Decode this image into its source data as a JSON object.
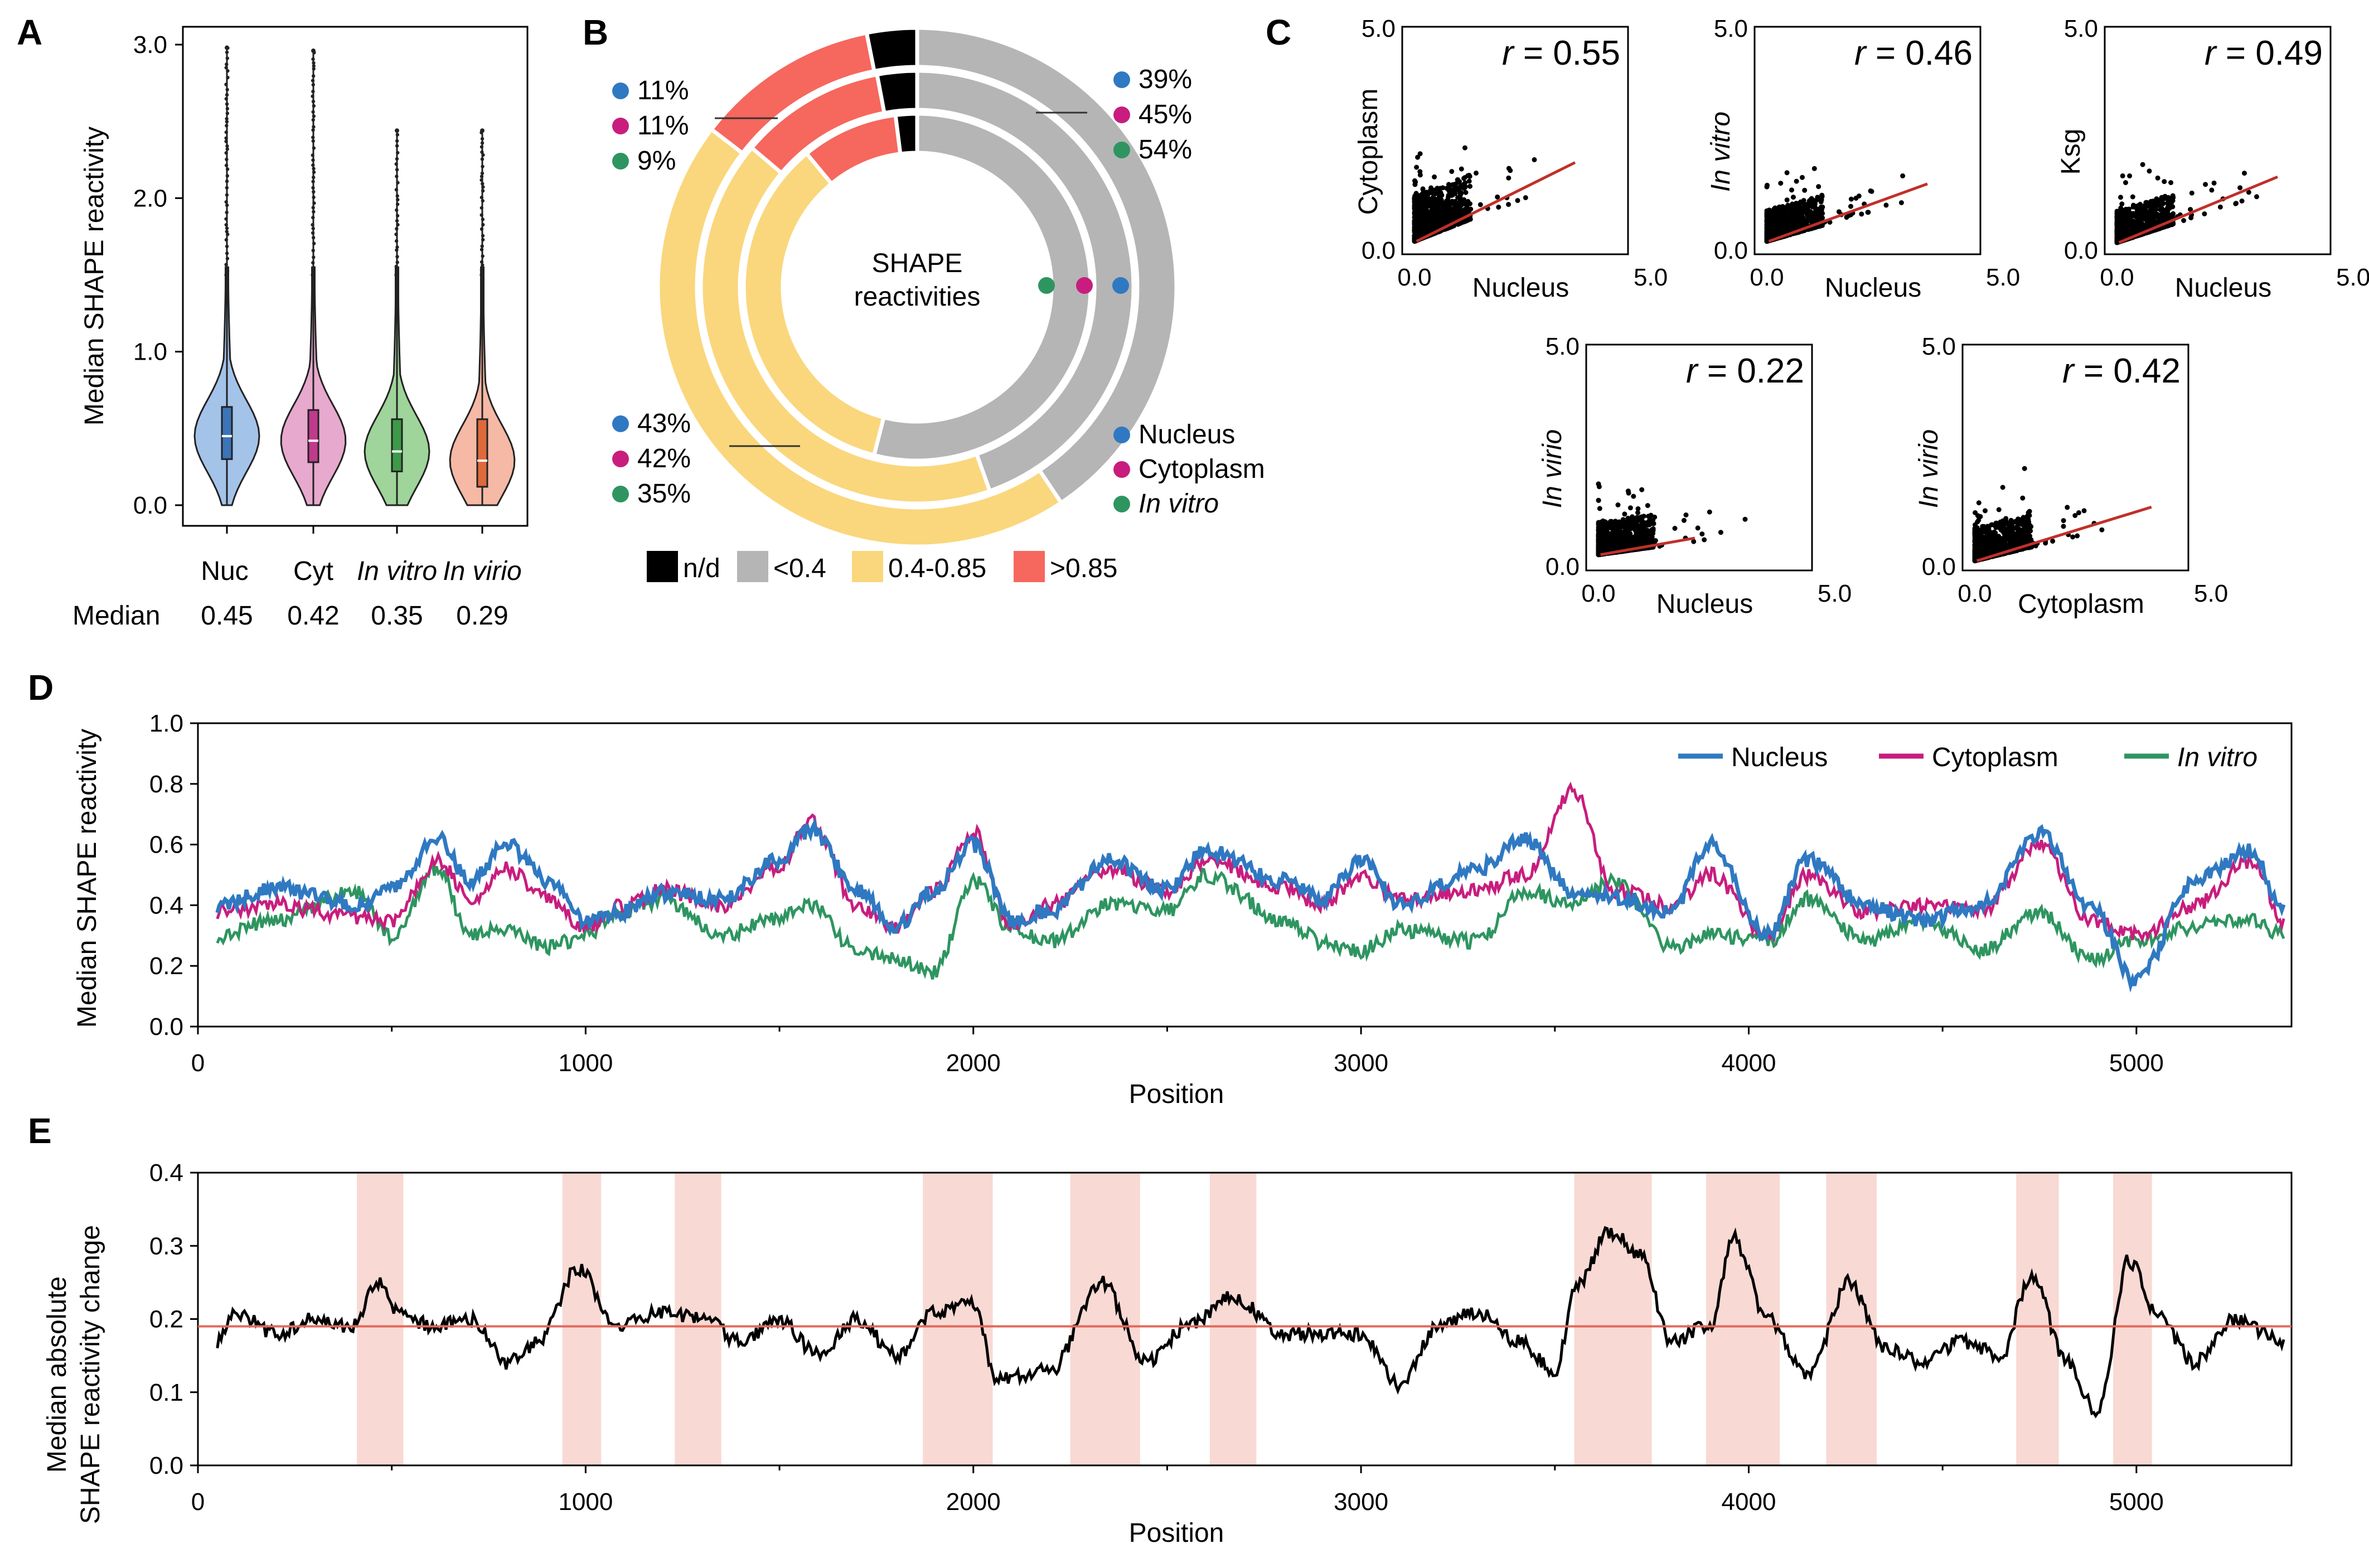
{
  "chart_data": [
    {
      "panel": "A",
      "type": "violin",
      "ylabel": "Median SHAPE reactivity",
      "ylim": [
        0,
        3.0
      ],
      "yticks": [
        "0.0",
        "1.0",
        "2.0",
        "3.0"
      ],
      "categories": [
        "Nuc",
        "Cyt",
        "In vitro",
        "In virio"
      ],
      "median_label": "Median",
      "median_values": [
        "0.45",
        "0.42",
        "0.35",
        "0.29"
      ],
      "medians": [
        0.45,
        0.42,
        0.35,
        0.29
      ],
      "q1": [
        0.3,
        0.28,
        0.22,
        0.12
      ],
      "q3": [
        0.64,
        0.62,
        0.56,
        0.56
      ],
      "whisker_high": [
        2.98,
        2.96,
        2.44,
        2.44
      ],
      "colors": [
        "#a4c3e9",
        "#e7a9cd",
        "#9fd49a",
        "#f5b9a6"
      ],
      "edge_colors": [
        "#3c74b8",
        "#c03a8e",
        "#3c9a48",
        "#de6a3c"
      ]
    },
    {
      "panel": "B",
      "type": "donut",
      "center_label": [
        "SHAPE",
        "reactivities"
      ],
      "categories": [
        "n/d",
        "<0.4",
        "0.4-0.85",
        ">0.85"
      ],
      "category_colors": [
        "#000000",
        "#b5b5b5",
        "#fad77d",
        "#f6675e"
      ],
      "rings": [
        {
          "name": "Nucleus",
          "color": "#2f79c2",
          "values": [
            3,
            39,
            43,
            11
          ]
        },
        {
          "name": "Cytoplasm",
          "color": "#c81d7e",
          "values": [
            3,
            45,
            42,
            11
          ]
        },
        {
          "name": "In vitro",
          "color": "#2e9560",
          "values": [
            2,
            54,
            35,
            9
          ]
        }
      ],
      "annotations": {
        "gt085": [
          "11%",
          "11%",
          "9%"
        ],
        "lt04": [
          "39%",
          "45%",
          "54%"
        ],
        "mid": [
          "43%",
          "42%",
          "35%"
        ]
      },
      "legend_rings": [
        "Nucleus",
        "Cytoplasm",
        "In vitro"
      ]
    },
    {
      "panel": "C",
      "type": "scatter",
      "plots": [
        {
          "xlabel": "Nucleus",
          "ylabel": "Cytoplasm",
          "r_prefix": "r",
          "r_value": "= 0.55",
          "xlim": [
            0,
            5.0
          ],
          "ylim": [
            0,
            5.0
          ],
          "slope": 0.48,
          "intercept": 0.18,
          "fit_xmax": 4.0,
          "spread": 1.1
        },
        {
          "xlabel": "Nucleus",
          "ylabel": "In vitro",
          "r_prefix": "r",
          "r_value": "= 0.46",
          "xlim": [
            0,
            5.0
          ],
          "ylim": [
            0,
            5.0
          ],
          "slope": 0.35,
          "intercept": 0.18,
          "fit_xmax": 4.0,
          "spread": 0.75
        },
        {
          "xlabel": "Nucleus",
          "ylabel": "Ksg",
          "r_prefix": "r",
          "r_value": "= 0.49",
          "xlim": [
            0,
            5.0
          ],
          "ylim": [
            0,
            5.0
          ],
          "slope": 0.4,
          "intercept": 0.15,
          "fit_xmax": 4.0,
          "spread": 0.75
        },
        {
          "xlabel": "Nucleus",
          "ylabel": "In virio",
          "r_prefix": "r",
          "r_value": "= 0.22",
          "xlim": [
            0,
            5.0
          ],
          "ylim": [
            0,
            5.0
          ],
          "slope": 0.17,
          "intercept": 0.25,
          "fit_xmax": 2.4,
          "spread": 0.8
        },
        {
          "xlabel": "Cytoplasm",
          "ylabel": "In virio",
          "r_prefix": "r",
          "r_value": "= 0.42",
          "xlim": [
            0,
            5.0
          ],
          "ylim": [
            0,
            5.0
          ],
          "slope": 0.3,
          "intercept": 0.1,
          "fit_xmax": 4.4,
          "spread": 0.8
        }
      ],
      "ticks": [
        "0.0",
        "5.0"
      ]
    },
    {
      "panel": "D",
      "type": "line",
      "xlabel": "Position",
      "ylabel": "Median SHAPE reactivity",
      "xlim": [
        0,
        5400
      ],
      "ylim": [
        0,
        1.0
      ],
      "xticks": [
        0,
        1000,
        2000,
        3000,
        4000,
        5000
      ],
      "yticks": [
        "0.0",
        "0.2",
        "0.4",
        "0.6",
        "0.8",
        "1.0"
      ],
      "x": [
        50,
        200,
        400,
        500,
        620,
        700,
        800,
        900,
        1000,
        1100,
        1200,
        1350,
        1500,
        1580,
        1700,
        1800,
        1900,
        2000,
        2100,
        2200,
        2350,
        2500,
        2600,
        2800,
        2900,
        3000,
        3100,
        3300,
        3420,
        3550,
        3650,
        3800,
        3900,
        4050,
        4150,
        4300,
        4450,
        4600,
        4750,
        4880,
        5000,
        5150,
        5300,
        5380
      ],
      "series": [
        {
          "name": "Nucleus",
          "color": "#2f79c2",
          "values": [
            0.4,
            0.46,
            0.4,
            0.45,
            0.62,
            0.48,
            0.6,
            0.48,
            0.35,
            0.38,
            0.44,
            0.42,
            0.55,
            0.65,
            0.45,
            0.33,
            0.45,
            0.6,
            0.35,
            0.38,
            0.55,
            0.45,
            0.58,
            0.48,
            0.42,
            0.55,
            0.4,
            0.52,
            0.62,
            0.44,
            0.43,
            0.38,
            0.6,
            0.3,
            0.55,
            0.4,
            0.35,
            0.4,
            0.64,
            0.4,
            0.15,
            0.48,
            0.58,
            0.38
          ]
        },
        {
          "name": "Cytoplasm",
          "color": "#c81d7e",
          "values": [
            0.38,
            0.4,
            0.36,
            0.35,
            0.55,
            0.42,
            0.52,
            0.42,
            0.33,
            0.4,
            0.45,
            0.4,
            0.52,
            0.68,
            0.4,
            0.33,
            0.45,
            0.64,
            0.33,
            0.4,
            0.52,
            0.45,
            0.55,
            0.46,
            0.4,
            0.5,
            0.42,
            0.45,
            0.5,
            0.78,
            0.45,
            0.4,
            0.5,
            0.3,
            0.5,
            0.38,
            0.4,
            0.38,
            0.6,
            0.35,
            0.3,
            0.4,
            0.55,
            0.35
          ]
        },
        {
          "name": "In vitro",
          "color": "#2e9560",
          "values": [
            0.3,
            0.35,
            0.45,
            0.3,
            0.52,
            0.3,
            0.32,
            0.26,
            0.3,
            0.38,
            0.42,
            0.3,
            0.36,
            0.4,
            0.25,
            0.22,
            0.18,
            0.48,
            0.32,
            0.28,
            0.4,
            0.38,
            0.5,
            0.35,
            0.28,
            0.25,
            0.32,
            0.28,
            0.45,
            0.4,
            0.48,
            0.26,
            0.3,
            0.28,
            0.42,
            0.28,
            0.35,
            0.25,
            0.38,
            0.22,
            0.28,
            0.33,
            0.35,
            0.3
          ]
        }
      ]
    },
    {
      "panel": "E",
      "type": "line",
      "xlabel": "Position",
      "ylabel": [
        "Median absolute",
        "SHAPE reactivity change"
      ],
      "xlim": [
        0,
        5400
      ],
      "ylim": [
        0,
        0.4
      ],
      "xticks": [
        0,
        1000,
        2000,
        3000,
        4000,
        5000
      ],
      "yticks": [
        "0.0",
        "0.1",
        "0.2",
        "0.3",
        "0.4"
      ],
      "reference_line": 0.19,
      "reference_color": "#e06a5c",
      "highlight_color": "#f9d9d3",
      "highlight_ranges": [
        [
          410,
          530
        ],
        [
          940,
          1040
        ],
        [
          1230,
          1350
        ],
        [
          1870,
          2050
        ],
        [
          2250,
          2430
        ],
        [
          2610,
          2730
        ],
        [
          3550,
          3750
        ],
        [
          3890,
          4080
        ],
        [
          4200,
          4330
        ],
        [
          4690,
          4800
        ],
        [
          4940,
          5040
        ]
      ],
      "x": [
        50,
        100,
        200,
        300,
        400,
        460,
        520,
        600,
        700,
        800,
        880,
        980,
        1080,
        1200,
        1300,
        1400,
        1500,
        1600,
        1700,
        1800,
        1900,
        2000,
        2060,
        2200,
        2330,
        2450,
        2550,
        2670,
        2800,
        3000,
        3100,
        3200,
        3300,
        3400,
        3500,
        3560,
        3640,
        3720,
        3800,
        3900,
        3960,
        4050,
        4150,
        4260,
        4350,
        4450,
        4550,
        4650,
        4730,
        4820,
        4900,
        4980,
        5060,
        5150,
        5250,
        5380
      ],
      "values": [
        0.17,
        0.21,
        0.18,
        0.2,
        0.19,
        0.25,
        0.21,
        0.19,
        0.2,
        0.14,
        0.17,
        0.27,
        0.19,
        0.21,
        0.2,
        0.17,
        0.2,
        0.15,
        0.2,
        0.15,
        0.21,
        0.22,
        0.12,
        0.13,
        0.25,
        0.14,
        0.19,
        0.23,
        0.18,
        0.18,
        0.11,
        0.19,
        0.21,
        0.17,
        0.13,
        0.25,
        0.32,
        0.29,
        0.17,
        0.19,
        0.31,
        0.2,
        0.12,
        0.25,
        0.16,
        0.14,
        0.17,
        0.15,
        0.26,
        0.14,
        0.07,
        0.28,
        0.2,
        0.14,
        0.2,
        0.17
      ]
    }
  ]
}
